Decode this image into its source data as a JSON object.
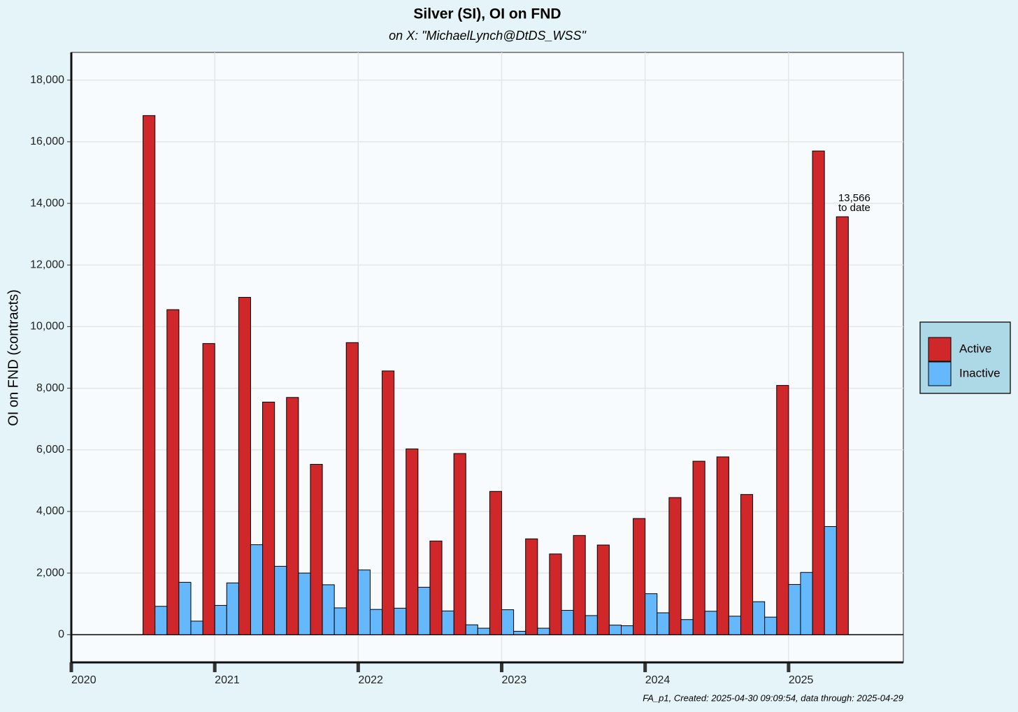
{
  "chart_data": {
    "type": "bar",
    "title": "Silver (SI), OI on FND",
    "subtitle": "on X:   \"MichaelLynch@DtDS_WSS\"",
    "y_label": "OI on FND (contracts)",
    "footnote": "FA_p1, Created: 2025-04-30 09:09:54, data through: 2025-04-29",
    "annotation_lines": [
      "13,566",
      "to date"
    ],
    "x": [
      "2020-07",
      "2020-08",
      "2020-09",
      "2020-10",
      "2020-11",
      "2020-12",
      "2021-01",
      "2021-02",
      "2021-03",
      "2021-04",
      "2021-05",
      "2021-06",
      "2021-07",
      "2021-08",
      "2021-09",
      "2021-10",
      "2021-11",
      "2021-12",
      "2022-01",
      "2022-02",
      "2022-03",
      "2022-04",
      "2022-05",
      "2022-06",
      "2022-07",
      "2022-08",
      "2022-09",
      "2022-10",
      "2022-11",
      "2022-12",
      "2023-01",
      "2023-02",
      "2023-03",
      "2023-04",
      "2023-05",
      "2023-06",
      "2023-07",
      "2023-08",
      "2023-09",
      "2023-10",
      "2023-11",
      "2023-12",
      "2024-01",
      "2024-02",
      "2024-03",
      "2024-04",
      "2024-05",
      "2024-06",
      "2024-07",
      "2024-08",
      "2024-09",
      "2024-10",
      "2024-11",
      "2024-12",
      "2025-01",
      "2025-02",
      "2025-03",
      "2025-04",
      "2025-05"
    ],
    "series": [
      {
        "name": "Active",
        "color": "#d0282a",
        "values": [
          16850,
          null,
          10550,
          null,
          null,
          9450,
          null,
          null,
          10950,
          null,
          7550,
          null,
          7700,
          null,
          5530,
          null,
          null,
          9480,
          null,
          null,
          8560,
          null,
          6030,
          null,
          3040,
          null,
          5880,
          null,
          null,
          4650,
          null,
          null,
          3110,
          null,
          2620,
          null,
          3220,
          null,
          2910,
          null,
          null,
          3770,
          null,
          null,
          4450,
          null,
          5630,
          null,
          5770,
          null,
          4550,
          null,
          null,
          8090,
          null,
          null,
          15700,
          null,
          13566
        ]
      },
      {
        "name": "Inactive",
        "color": "#66b8fc",
        "values": [
          null,
          920,
          null,
          1700,
          440,
          null,
          950,
          1680,
          null,
          2920,
          null,
          2220,
          null,
          2000,
          null,
          1620,
          870,
          null,
          2100,
          820,
          null,
          860,
          null,
          1540,
          null,
          770,
          null,
          320,
          210,
          null,
          810,
          110,
          null,
          210,
          null,
          790,
          null,
          620,
          null,
          310,
          290,
          null,
          1330,
          710,
          null,
          490,
          null,
          760,
          null,
          600,
          null,
          1070,
          570,
          null,
          1630,
          2020,
          null,
          3510,
          null
        ]
      }
    ],
    "xlim": [
      2020,
      2025.8
    ],
    "xticks": [
      2020,
      2021,
      2022,
      2023,
      2024,
      2025
    ],
    "ylim": [
      -900,
      18900
    ],
    "yticks": [
      0,
      {
        "value": 2000,
        "label": "2,000"
      },
      {
        "value": 4000,
        "label": "4,000"
      },
      {
        "value": 6000,
        "label": "6,000"
      },
      {
        "value": 8000,
        "label": "8,000"
      },
      {
        "value": 10000,
        "label": "10,000"
      },
      {
        "value": 12000,
        "label": "12,000"
      },
      {
        "value": 14000,
        "label": "14,000"
      },
      {
        "value": 16000,
        "label": "16,000"
      },
      {
        "value": 18000,
        "label": "18,000"
      }
    ],
    "grid": true,
    "legend": "right"
  }
}
